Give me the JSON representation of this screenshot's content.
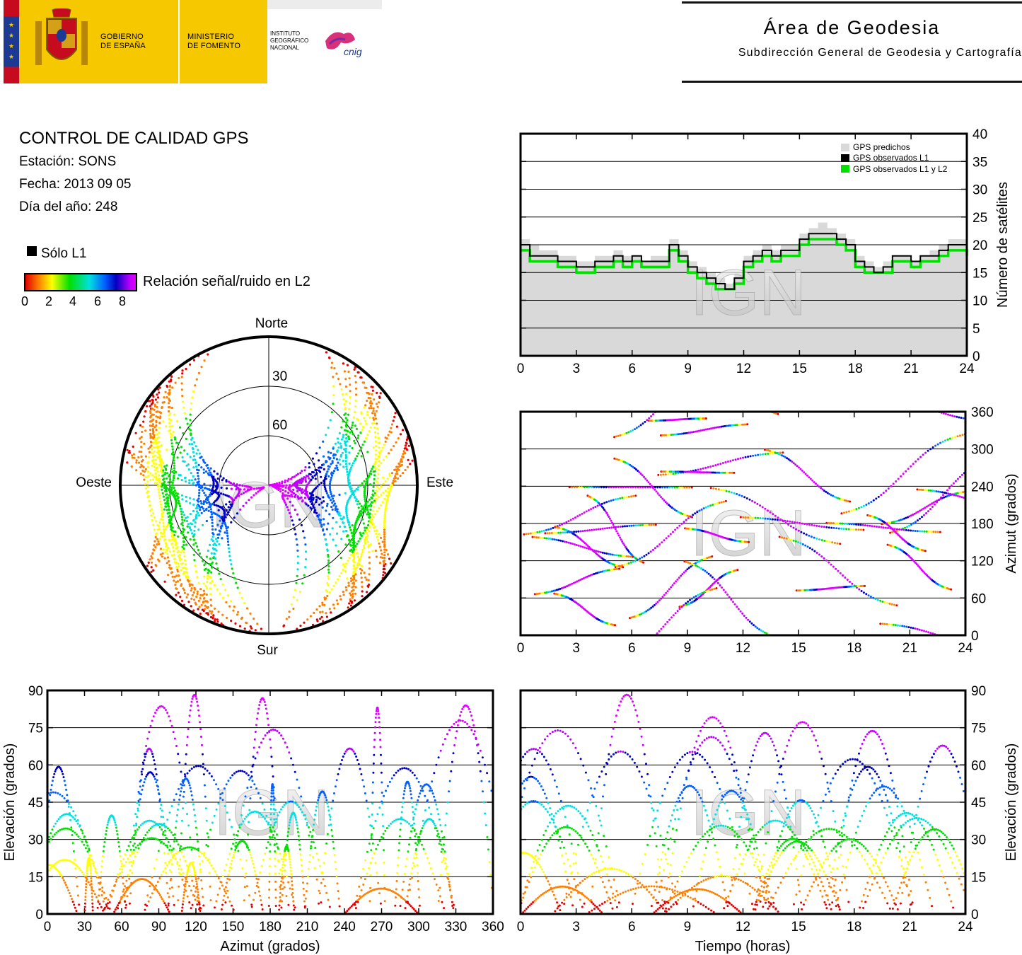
{
  "header": {
    "gov_line1": "GOBIERNO",
    "gov_line2": "DE ESPAÑA",
    "min_line1": "MINISTERIO",
    "min_line2": "DE FOMENTO",
    "ign_line1": "INSTITUTO",
    "ign_line2": "GEOGRÁFICO",
    "ign_line3": "NACIONAL",
    "logo_text": "cnig",
    "area_title": "Área de Geodesia",
    "area_subtitle": "Subdirección General de Geodesia y Cartografía"
  },
  "info": {
    "title": "CONTROL DE CALIDAD GPS",
    "station": "Estación: SONS",
    "date": "Fecha: 2013 09 05",
    "doy": "Día del año: 248"
  },
  "legend": {
    "l1_only": "Sólo L1",
    "colorbar_label": "Relación señal/ruido en L2",
    "colorbar_ticks": [
      "0",
      "2",
      "4",
      "6",
      "8"
    ],
    "colorbar_colors": [
      "#e00000",
      "#ff8000",
      "#ffff00",
      "#00e000",
      "#00e0e0",
      "#0060ff",
      "#0000c0",
      "#c000ff",
      "#e000ff"
    ]
  },
  "watermark": "IGN",
  "chart_data": [
    {
      "id": "satellites",
      "type": "area",
      "ylabel": "Número de satélites",
      "xticks": [
        "0",
        "3",
        "6",
        "9",
        "12",
        "15",
        "18",
        "21",
        "24"
      ],
      "yticks": [
        "0",
        "5",
        "10",
        "15",
        "20",
        "25",
        "30",
        "35",
        "40"
      ],
      "xlim": [
        0,
        24
      ],
      "ylim": [
        0,
        40
      ],
      "legend": [
        "GPS predichos",
        "GPS observados L1",
        "GPS observados L1 y L2"
      ],
      "colors": {
        "predicted": "#d9d9d9",
        "l1": "#000000",
        "l1l2": "#00e000"
      },
      "x": [
        0,
        0.5,
        1,
        1.5,
        2,
        2.5,
        3,
        3.5,
        4,
        4.5,
        5,
        5.5,
        6,
        6.5,
        7,
        7.5,
        8,
        8.5,
        9,
        9.5,
        10,
        10.5,
        11,
        11.5,
        12,
        12.5,
        13,
        13.5,
        14,
        14.5,
        15,
        15.5,
        16,
        16.5,
        17,
        17.5,
        18,
        18.5,
        19,
        19.5,
        20,
        20.5,
        21,
        21.5,
        22,
        22.5,
        23,
        23.5,
        24
      ],
      "series": [
        {
          "name": "GPS predichos",
          "values": [
            21,
            20,
            19,
            19,
            18,
            18,
            17,
            17,
            18,
            18,
            19,
            18,
            18,
            17,
            18,
            18,
            21,
            19,
            17,
            16,
            15,
            14,
            13,
            15,
            18,
            19,
            20,
            19,
            20,
            20,
            22,
            23,
            24,
            23,
            22,
            21,
            18,
            17,
            16,
            17,
            18,
            18,
            17,
            18,
            19,
            20,
            21,
            21,
            20
          ]
        },
        {
          "name": "GPS observados L1",
          "values": [
            20,
            18,
            18,
            18,
            17,
            17,
            16,
            16,
            17,
            17,
            18,
            17,
            18,
            17,
            17,
            17,
            20,
            18,
            16,
            15,
            14,
            13,
            12,
            14,
            17,
            18,
            19,
            18,
            19,
            19,
            21,
            22,
            22,
            22,
            21,
            20,
            17,
            16,
            15,
            16,
            18,
            18,
            17,
            18,
            18,
            19,
            20,
            20,
            19
          ]
        },
        {
          "name": "GPS observados L1 y L2",
          "values": [
            19,
            17,
            17,
            17,
            16,
            16,
            15,
            15,
            16,
            16,
            17,
            16,
            17,
            16,
            16,
            16,
            19,
            17,
            15,
            14,
            13,
            12,
            12,
            13,
            16,
            17,
            18,
            17,
            18,
            18,
            20,
            21,
            21,
            21,
            20,
            19,
            16,
            15,
            15,
            15,
            17,
            17,
            16,
            17,
            17,
            18,
            19,
            19,
            18
          ]
        }
      ]
    },
    {
      "id": "skyplot",
      "type": "scatter",
      "labels": {
        "north": "Norte",
        "south": "Sur",
        "west": "Oeste",
        "east": "Este"
      },
      "ring_labels": [
        "30",
        "60"
      ],
      "color_by": "SNR L2 (0-8)"
    },
    {
      "id": "azimuth_time",
      "type": "scatter",
      "ylabel": "Azimut (grados)",
      "xticks": [
        "0",
        "3",
        "6",
        "9",
        "12",
        "15",
        "18",
        "21",
        "24"
      ],
      "yticks": [
        "0",
        "60",
        "120",
        "180",
        "240",
        "300",
        "360"
      ],
      "xlim": [
        0,
        24
      ],
      "ylim": [
        0,
        360
      ]
    },
    {
      "id": "elev_azimuth",
      "type": "scatter",
      "xlabel": "Azimut (grados)",
      "ylabel": "Elevación (grados)",
      "xticks": [
        "0",
        "30",
        "60",
        "90",
        "120",
        "150",
        "180",
        "210",
        "240",
        "270",
        "300",
        "330",
        "360"
      ],
      "yticks": [
        "0",
        "15",
        "30",
        "45",
        "60",
        "75",
        "90"
      ],
      "xlim": [
        0,
        360
      ],
      "ylim": [
        0,
        90
      ]
    },
    {
      "id": "elev_time",
      "type": "scatter",
      "xlabel": "Tiempo (horas)",
      "ylabel": "Elevación (grados)",
      "xticks": [
        "0",
        "3",
        "6",
        "9",
        "12",
        "15",
        "18",
        "21",
        "24"
      ],
      "yticks": [
        "0",
        "15",
        "30",
        "45",
        "60",
        "75",
        "90"
      ],
      "xlim": [
        0,
        24
      ],
      "ylim": [
        0,
        90
      ]
    }
  ]
}
